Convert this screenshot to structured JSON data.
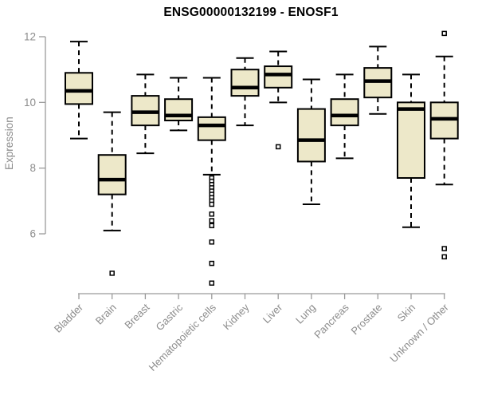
{
  "chart_data": {
    "type": "boxplot",
    "title": "ENSG00000132199 - ENOSF1",
    "ylabel": "Expression",
    "xlabel": "",
    "ylim": [
      6,
      12
    ],
    "yticks": [
      6,
      8,
      10,
      12
    ],
    "grid": false,
    "legend": "none",
    "colors": {
      "box_fill": "#ede8c9",
      "box_stroke": "#000000",
      "median": "#000000",
      "axis": "#9a9a9a",
      "text": "#8c8c8c",
      "title": "#000000",
      "background": "#ffffff"
    },
    "categories": [
      "Bladder",
      "Brain",
      "Breast",
      "Gastric",
      "Hematopoietic cells",
      "Kidney",
      "Liver",
      "Lung",
      "Pancreas",
      "Prostate",
      "Skin",
      "Unknown / Other"
    ],
    "series": [
      {
        "category": "Bladder",
        "whisker_low": 8.9,
        "q1": 9.95,
        "median": 10.35,
        "q3": 10.9,
        "whisker_high": 11.85,
        "outliers": []
      },
      {
        "category": "Brain",
        "whisker_low": 6.1,
        "q1": 7.2,
        "median": 7.65,
        "q3": 8.4,
        "whisker_high": 9.7,
        "outliers": [
          4.8
        ]
      },
      {
        "category": "Breast",
        "whisker_low": 8.45,
        "q1": 9.3,
        "median": 9.7,
        "q3": 10.2,
        "whisker_high": 10.85,
        "outliers": []
      },
      {
        "category": "Gastric",
        "whisker_low": 9.15,
        "q1": 9.45,
        "median": 9.6,
        "q3": 10.1,
        "whisker_high": 10.75,
        "outliers": []
      },
      {
        "category": "Hematopoietic cells",
        "whisker_low": 7.8,
        "q1": 8.85,
        "median": 9.3,
        "q3": 9.55,
        "whisker_high": 10.75,
        "outliers": [
          7.7,
          7.6,
          7.5,
          7.4,
          7.3,
          7.2,
          7.1,
          7.0,
          6.9,
          6.6,
          6.4,
          6.25,
          5.75,
          5.1,
          4.5
        ]
      },
      {
        "category": "Kidney",
        "whisker_low": 9.3,
        "q1": 10.2,
        "median": 10.45,
        "q3": 11.0,
        "whisker_high": 11.35,
        "outliers": []
      },
      {
        "category": "Liver",
        "whisker_low": 10.0,
        "q1": 10.45,
        "median": 10.85,
        "q3": 11.1,
        "whisker_high": 11.55,
        "outliers": [
          8.65
        ]
      },
      {
        "category": "Lung",
        "whisker_low": 6.9,
        "q1": 8.2,
        "median": 8.85,
        "q3": 9.8,
        "whisker_high": 10.7,
        "outliers": []
      },
      {
        "category": "Pancreas",
        "whisker_low": 8.3,
        "q1": 9.3,
        "median": 9.6,
        "q3": 10.1,
        "whisker_high": 10.85,
        "outliers": []
      },
      {
        "category": "Prostate",
        "whisker_low": 9.65,
        "q1": 10.15,
        "median": 10.65,
        "q3": 11.05,
        "whisker_high": 11.7,
        "outliers": []
      },
      {
        "category": "Skin",
        "whisker_low": 6.2,
        "q1": 7.7,
        "median": 9.8,
        "q3": 10.0,
        "whisker_high": 10.85,
        "outliers": []
      },
      {
        "category": "Unknown / Other",
        "whisker_low": 7.5,
        "q1": 8.9,
        "median": 9.5,
        "q3": 10.0,
        "whisker_high": 11.4,
        "outliers": [
          12.1,
          5.55,
          5.3
        ]
      }
    ]
  }
}
